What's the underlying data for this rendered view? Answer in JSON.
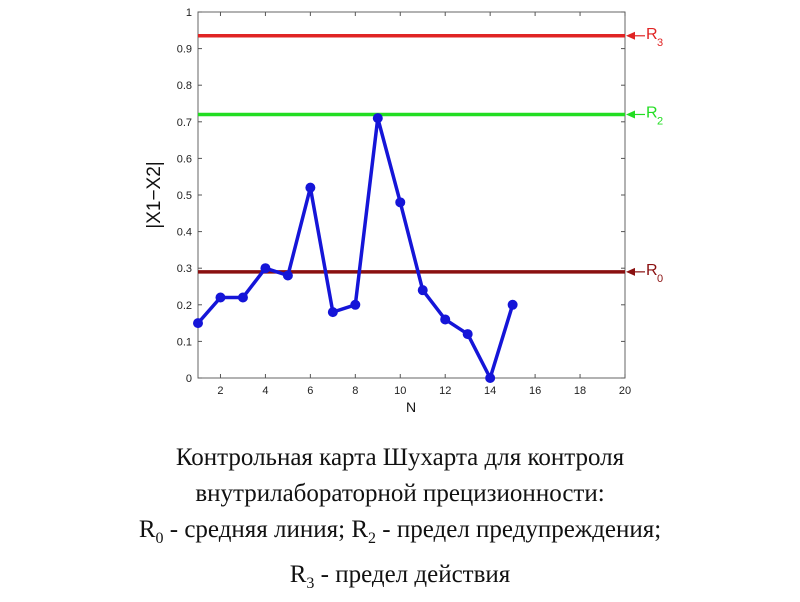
{
  "chart_data": {
    "type": "line",
    "ylabel": "|X1−X2|",
    "xlabel": "N",
    "xlim": [
      1,
      20
    ],
    "ylim": [
      0,
      1
    ],
    "x_ticks": [
      2,
      4,
      6,
      8,
      10,
      12,
      14,
      16,
      18,
      20
    ],
    "y_ticks": [
      0,
      0.1,
      0.2,
      0.3,
      0.4,
      0.5,
      0.6,
      0.7,
      0.8,
      0.9,
      1
    ],
    "grid": false,
    "series": [
      {
        "color": "#1515d8",
        "x": [
          1,
          2,
          3,
          4,
          5,
          6,
          7,
          8,
          9,
          10,
          11,
          12,
          13,
          14,
          15
        ],
        "y": [
          0.15,
          0.22,
          0.22,
          0.3,
          0.28,
          0.52,
          0.18,
          0.2,
          0.71,
          0.48,
          0.24,
          0.16,
          0.12,
          0.0,
          0.2
        ]
      }
    ],
    "reference_lines": [
      {
        "main": "R",
        "sub": "3",
        "value": 0.935,
        "color": "#e02424"
      },
      {
        "main": "R",
        "sub": "2",
        "value": 0.72,
        "color": "#22dd22"
      },
      {
        "main": "R",
        "sub": "0",
        "value": 0.29,
        "color": "#8a1010"
      }
    ]
  },
  "caption": {
    "line1": "Контрольная карта Шухарта для контроля",
    "line2": "внутрилабораторной прецизионности:",
    "line3_a": "R",
    "line3_a_sub": "0",
    "line3_b": " - средняя линия; R",
    "line3_b_sub": "2",
    "line3_c": " - предел предупреждения;",
    "line4_a": "R",
    "line4_a_sub": "3",
    "line4_b": " - предел действия"
  }
}
